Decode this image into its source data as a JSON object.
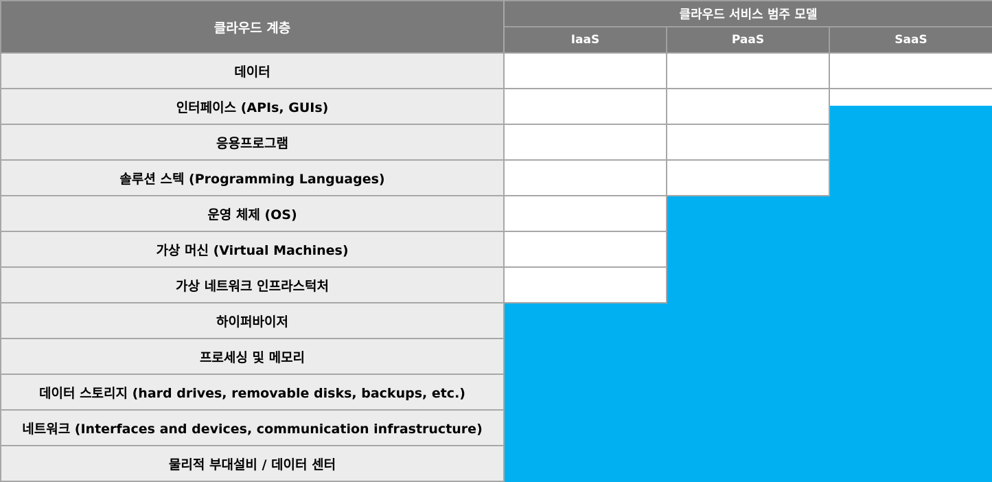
{
  "table": {
    "header": {
      "layer_label": "클라우드 계층",
      "group_label": "클라우드 서비스 범주 모델",
      "models": [
        "IaaS",
        "PaaS",
        "SaaS"
      ]
    },
    "rows": [
      {
        "label": "데이터",
        "cells": [
          "white",
          "white",
          "white"
        ]
      },
      {
        "label": "인터페이스 (APIs, GUIs)",
        "cells": [
          "white",
          "white",
          "partial"
        ]
      },
      {
        "label": "응용프로그램",
        "cells": [
          "white",
          "white",
          "blue"
        ]
      },
      {
        "label": "솔루션 스텍 (Programming Languages)",
        "cells": [
          "white",
          "white",
          "blue"
        ]
      },
      {
        "label": "운영 체제 (OS)",
        "cells": [
          "white",
          "blue",
          "blue"
        ]
      },
      {
        "label": "가상 머신 (Virtual Machines)",
        "cells": [
          "white",
          "blue",
          "blue"
        ]
      },
      {
        "label": "가상 네트워크 인프라스턱처",
        "cells": [
          "white",
          "blue",
          "blue"
        ]
      },
      {
        "label": "하이퍼바이저",
        "cells": [
          "blue",
          "blue",
          "blue"
        ]
      },
      {
        "label": "프로세싱 및 메모리",
        "cells": [
          "blue",
          "blue",
          "blue"
        ]
      },
      {
        "label": "데이터 스토리지 (hard drives, removable disks, backups, etc.)",
        "cells": [
          "blue",
          "blue",
          "blue"
        ]
      },
      {
        "label": "네트워크 (Interfaces and devices, communication infrastructure)",
        "cells": [
          "blue",
          "blue",
          "blue"
        ]
      },
      {
        "label": "물리적 부대설비 / 데이터 센터",
        "cells": [
          "blue",
          "blue",
          "blue"
        ]
      }
    ]
  },
  "colors": {
    "header_bg": "#7a7a7a",
    "layer_bg": "#ececec",
    "managed_blue": "#00b0f0",
    "unmanaged_white": "#ffffff"
  }
}
